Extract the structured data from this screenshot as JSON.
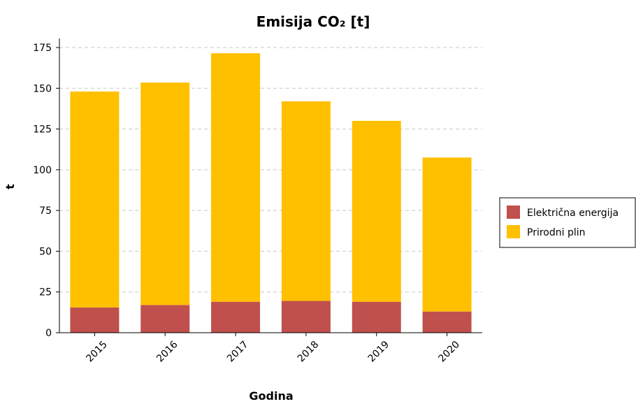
{
  "chart_data": {
    "type": "bar",
    "stacked": true,
    "title": "Emisija CO₂ [t]",
    "xlabel": "Godina",
    "ylabel": "t",
    "ylim": [
      0,
      180
    ],
    "yticks": [
      0,
      25,
      50,
      75,
      100,
      125,
      150,
      175
    ],
    "grid": true,
    "legend_position": "right",
    "categories": [
      "2015",
      "2016",
      "2017",
      "2018",
      "2019",
      "2020"
    ],
    "series": [
      {
        "name": "Električna energija",
        "color": "#c0504d",
        "values": [
          15.5,
          17,
          19,
          19.5,
          19,
          13
        ]
      },
      {
        "name": "Prirodni plin",
        "color": "#ffc000",
        "values": [
          132.5,
          136.5,
          152.5,
          122.5,
          111,
          94.5
        ]
      }
    ]
  }
}
